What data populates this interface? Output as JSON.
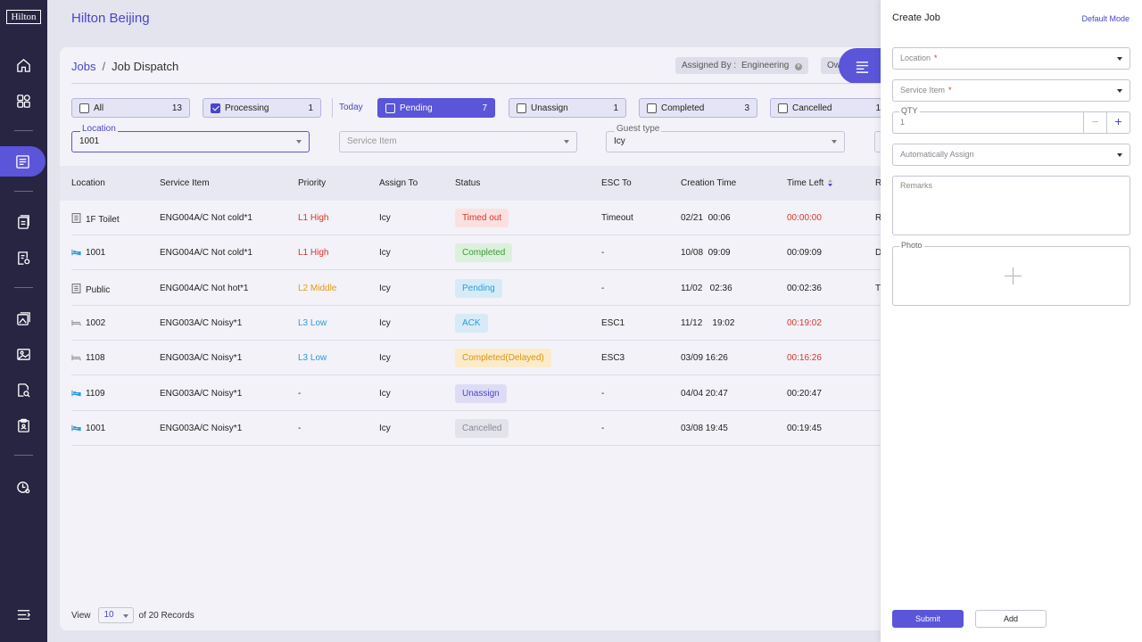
{
  "brand": {
    "logo_text": "Hilton",
    "hotel_name": "Hilton Beijing"
  },
  "sidebar": {
    "items": [
      {
        "icon": "home-icon"
      },
      {
        "icon": "grid-icon"
      },
      {
        "icon": "job-list-icon"
      },
      {
        "icon": "document-icon"
      },
      {
        "icon": "report-icon"
      },
      {
        "icon": "gallery-icon"
      },
      {
        "icon": "image-icon"
      },
      {
        "icon": "file-search-icon"
      },
      {
        "icon": "clipboard-icon"
      },
      {
        "icon": "clock-settings-icon"
      },
      {
        "icon": "menu-collapse-icon"
      }
    ]
  },
  "breadcrumb": {
    "root": "Jobs",
    "separator": "/",
    "current": "Job Dispatch"
  },
  "chips": {
    "assigned_by_label": "Assigned By :",
    "assigned_by_value": "Engineering",
    "remove": "×",
    "ow_label": "Ow"
  },
  "filters": {
    "tabs": [
      {
        "label": "All",
        "count": "13",
        "checked": false,
        "active": false
      },
      {
        "label": "Processing",
        "count": "1",
        "checked": true,
        "active": false
      },
      {
        "label": "Pending",
        "count": "7",
        "checked": false,
        "active": true
      },
      {
        "label": "Unassign",
        "count": "1",
        "checked": false,
        "active": false
      },
      {
        "label": "Completed",
        "count": "3",
        "checked": false,
        "active": false
      },
      {
        "label": "Cancelled",
        "count": "1",
        "checked": false,
        "active": false
      }
    ],
    "today_label": "Today",
    "location": {
      "label": "Location",
      "value": "1001"
    },
    "service_item": {
      "placeholder": "Service Item"
    },
    "guest_type": {
      "label": "Guest type",
      "value": "Icy"
    }
  },
  "table": {
    "headers": {
      "location": "Location",
      "service_item": "Service Item",
      "priority": "Priority",
      "assign_to": "Assign To",
      "status": "Status",
      "esc_to": "ESC To",
      "creation_time": "Creation Time",
      "time_left": "Time Left",
      "remarks": "R"
    },
    "rows": [
      {
        "loc_type": "building",
        "location": "1F Toilet",
        "service": "ENG004A/C Not cold*1",
        "priority": "L1 High",
        "priority_level": "high",
        "assign": "Icy",
        "status": "Timed out",
        "status_kind": "timedout",
        "esc": "Timeout",
        "created": "02/21  00:06",
        "time_left": "00:00:00",
        "overdue": true,
        "remark": "R"
      },
      {
        "loc_type": "bed",
        "location": "1001",
        "service": "ENG004A/C Not cold*1",
        "priority": "L1 High",
        "priority_level": "high",
        "assign": "Icy",
        "status": "Completed",
        "status_kind": "completed",
        "esc": "-",
        "created": "10/08  09:09",
        "time_left": "00:09:09",
        "overdue": false,
        "remark": "D"
      },
      {
        "loc_type": "building",
        "location": "Public",
        "service": "ENG004A/C Not hot*1",
        "priority": "L2 Middle",
        "priority_level": "middle",
        "assign": "Icy",
        "status": "Pending",
        "status_kind": "pending",
        "esc": "-",
        "created": "11/02   02:36",
        "time_left": "00:02:36",
        "overdue": false,
        "remark": "T"
      },
      {
        "loc_type": "bed-empty",
        "location": "1002",
        "service": "ENG003A/C Noisy*1",
        "priority": "L3 Low",
        "priority_level": "low",
        "assign": "Icy",
        "status": "ACK",
        "status_kind": "ack",
        "esc": "ESC1",
        "created": "11/12    19:02",
        "time_left": "00:19:02",
        "overdue": true,
        "remark": ""
      },
      {
        "loc_type": "bed-empty",
        "location": "1108",
        "service": "ENG003A/C Noisy*1",
        "priority": "L3 Low",
        "priority_level": "low",
        "assign": "Icy",
        "status": "Completed(Delayed)",
        "status_kind": "delayed",
        "esc": "ESC3",
        "created": "03/09 16:26",
        "time_left": "00:16:26",
        "overdue": true,
        "remark": ""
      },
      {
        "loc_type": "bed",
        "location": "1109",
        "service": "ENG003A/C Noisy*1",
        "priority": "-",
        "priority_level": "none",
        "assign": "Icy",
        "status": "Unassign",
        "status_kind": "unassign",
        "esc": "-",
        "created": "04/04 20:47",
        "time_left": "00:20:47",
        "overdue": false,
        "remark": ""
      },
      {
        "loc_type": "bed",
        "location": "1001",
        "service": "ENG003A/C Noisy*1",
        "priority": "-",
        "priority_level": "none",
        "assign": "Icy",
        "status": "Cancelled",
        "status_kind": "cancelled",
        "esc": "-",
        "created": "03/08 19:45",
        "time_left": "00:19:45",
        "overdue": false,
        "remark": ""
      }
    ]
  },
  "footer": {
    "view_label": "View",
    "page_size": "10",
    "records_text": "of 20 Records"
  },
  "panel": {
    "title": "Create Job",
    "mode": "Default Mode",
    "location_placeholder": "Location",
    "service_item_placeholder": "Service Item",
    "required_mark": "*",
    "qty_label": "QTY",
    "qty_value": "1",
    "minus": "−",
    "plus": "+",
    "assign_placeholder": "Automatically Assign",
    "remarks_label": "Remarks",
    "photo_label": "Photo",
    "submit_label": "Submit",
    "add_label": "Add"
  },
  "colors": {
    "accent": "#5a55d9",
    "sidebar": "#272542",
    "high": "#d9342b",
    "middle": "#e39a12",
    "low": "#2d9cdb"
  }
}
